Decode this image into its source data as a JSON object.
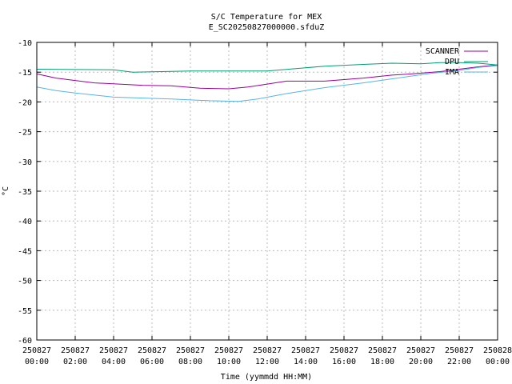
{
  "chart_data": {
    "type": "line",
    "title": "S/C Temperature for MEX",
    "subtitle": "E_SC20250827000000.sfduZ",
    "xlabel": "Time (yymmdd HH:MM)",
    "ylabel": "°C",
    "ylim": [
      -60,
      -10
    ],
    "yticks": [
      -10,
      -15,
      -20,
      -25,
      -30,
      -35,
      -40,
      -45,
      -50,
      -55,
      -60
    ],
    "xlim": [
      "250827 00:00",
      "250828 00:00"
    ],
    "xticks": [
      [
        "250827",
        "00:00"
      ],
      [
        "250827",
        "02:00"
      ],
      [
        "250827",
        "04:00"
      ],
      [
        "250827",
        "06:00"
      ],
      [
        "250827",
        "08:00"
      ],
      [
        "250827",
        "10:00"
      ],
      [
        "250827",
        "12:00"
      ],
      [
        "250827",
        "14:00"
      ],
      [
        "250827",
        "16:00"
      ],
      [
        "250827",
        "18:00"
      ],
      [
        "250827",
        "20:00"
      ],
      [
        "250827",
        "22:00"
      ],
      [
        "250828",
        "00:00"
      ]
    ],
    "grid": true,
    "legend_position": "top-right",
    "series": [
      {
        "name": "SCANNER",
        "color": "#990099",
        "x": [
          "250827 00:00",
          "250827 01:00",
          "250827 03:00",
          "250827 05:30",
          "250827 07:00",
          "250827 08:30",
          "250827 10:00",
          "250827 11:00",
          "250827 12:00",
          "250827 13:00",
          "250827 15:00",
          "250827 17:00",
          "250827 18:30",
          "250827 19:30",
          "250827 21:00",
          "250827 22:00",
          "250827 23:00",
          "250828 00:00"
        ],
        "values": [
          -15.3,
          -16.0,
          -16.8,
          -17.2,
          -17.3,
          -17.7,
          -17.8,
          -17.5,
          -17.0,
          -16.5,
          -16.5,
          -16.0,
          -15.5,
          -15.3,
          -14.9,
          -14.5,
          -14.1,
          -13.8
        ]
      },
      {
        "name": "DPU",
        "color": "#009e73",
        "x": [
          "250827 00:00",
          "250827 04:00",
          "250827 05:00",
          "250827 08:00",
          "250827 12:00",
          "250827 13:30",
          "250827 15:00",
          "250827 17:00",
          "250827 18:30",
          "250827 20:00",
          "250827 21:00",
          "250827 22:00",
          "250827 23:00",
          "250828 00:00"
        ],
        "values": [
          -14.5,
          -14.6,
          -15.0,
          -14.8,
          -14.8,
          -14.4,
          -14.0,
          -13.7,
          -13.5,
          -13.6,
          -13.4,
          -13.4,
          -13.5,
          -13.8
        ]
      },
      {
        "name": "IMA",
        "color": "#56b4e9",
        "x": [
          "250827 00:00",
          "250827 01:00",
          "250827 02:00",
          "250827 04:00",
          "250827 07:00",
          "250827 09:00",
          "250827 10:30",
          "250827 11:30",
          "250827 13:00",
          "250827 15:00",
          "250827 17:00",
          "250827 19:00",
          "250827 20:30",
          "250827 22:00",
          "250827 23:00",
          "250828 00:00"
        ],
        "values": [
          -17.5,
          -18.1,
          -18.5,
          -19.2,
          -19.5,
          -19.8,
          -19.9,
          -19.5,
          -18.6,
          -17.6,
          -16.8,
          -15.9,
          -15.2,
          -14.7,
          -14.2,
          -13.9
        ]
      }
    ]
  }
}
